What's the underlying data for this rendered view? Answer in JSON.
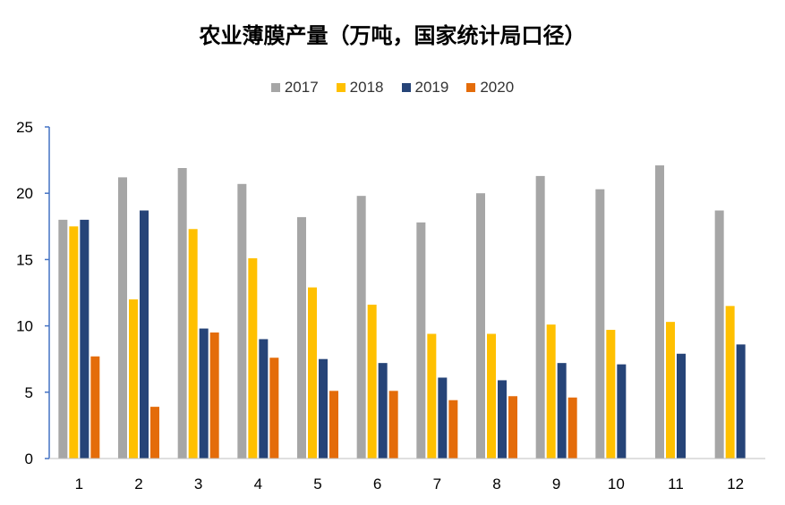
{
  "chart_data": {
    "type": "bar",
    "title": "农业薄膜产量（万吨，国家统计局口径）",
    "xlabel": "",
    "ylabel": "",
    "ylim": [
      0,
      25
    ],
    "yticks": [
      0,
      5,
      10,
      15,
      20,
      25
    ],
    "grid": false,
    "legend_position": "top-center",
    "categories": [
      "1",
      "2",
      "3",
      "4",
      "5",
      "6",
      "7",
      "8",
      "9",
      "10",
      "11",
      "12"
    ],
    "series": [
      {
        "name": "2017",
        "color": "#a6a6a6",
        "values": [
          18.0,
          21.2,
          21.9,
          20.7,
          18.2,
          19.8,
          17.8,
          20.0,
          21.3,
          20.3,
          22.1,
          18.7
        ]
      },
      {
        "name": "2018",
        "color": "#ffc000",
        "values": [
          17.5,
          12.0,
          17.3,
          15.1,
          12.9,
          11.6,
          9.4,
          9.4,
          10.1,
          9.7,
          10.3,
          11.5
        ]
      },
      {
        "name": "2019",
        "color": "#264478",
        "values": [
          18.0,
          18.7,
          9.8,
          9.0,
          7.5,
          7.2,
          6.1,
          5.9,
          7.2,
          7.1,
          7.9,
          8.6
        ]
      },
      {
        "name": "2020",
        "color": "#e46c0a",
        "values": [
          7.7,
          3.9,
          9.5,
          7.6,
          5.1,
          5.1,
          4.4,
          4.7,
          4.6,
          null,
          null,
          null
        ]
      }
    ]
  }
}
